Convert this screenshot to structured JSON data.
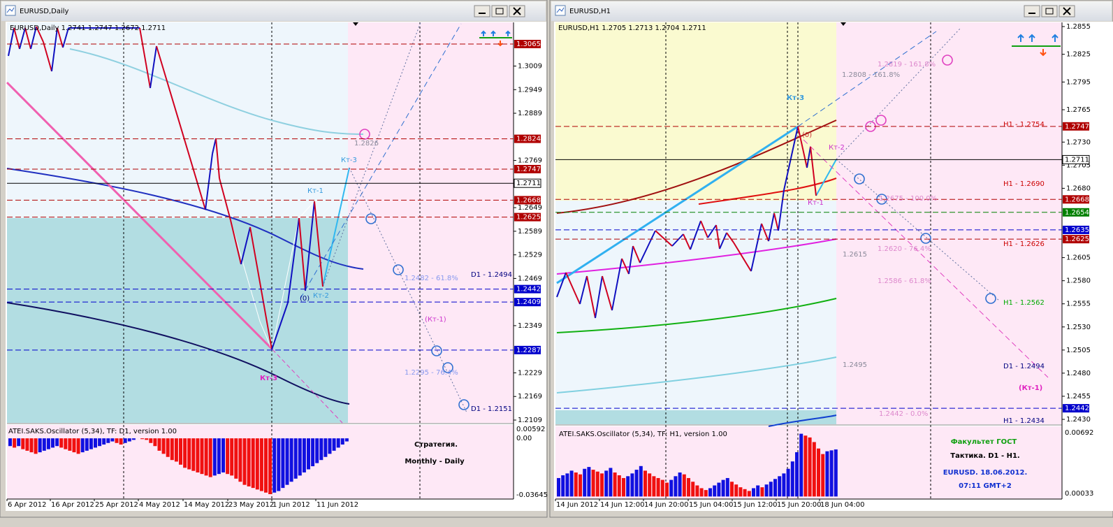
{
  "windows": [
    {
      "title": "EURUSD,Daily",
      "header": "EURUSD,Daily 1.2741 1.2747 1.2672 1.2711",
      "price_ticks": [
        "1.3009",
        "1.2949",
        "1.2889",
        "1.2769",
        "1.2649",
        "1.2589",
        "1.2529",
        "1.2469",
        "1.2349",
        "1.2229",
        "1.2169",
        "1.2109"
      ],
      "levels": [
        {
          "label": "1.3065",
          "color": "#b00000"
        },
        {
          "label": "1.2824",
          "color": "#b00000"
        },
        {
          "label": "1.2747",
          "color": "#b00000"
        },
        {
          "label": "1.2711",
          "color": "#000000"
        },
        {
          "label": "1.2668",
          "color": "#b00000"
        },
        {
          "label": "1.2625",
          "color": "#b00000"
        },
        {
          "label": "1.2442",
          "color": "#0000cc"
        },
        {
          "label": "1.2409",
          "color": "#0000cc"
        },
        {
          "label": "1.2287",
          "color": "#0000cc"
        }
      ],
      "annotations": [
        {
          "text": "1.2826",
          "color": "#8a8a9a"
        },
        {
          "text": "Кт-3",
          "color": "#3399dd"
        },
        {
          "text": "Кт-1",
          "color": "#3399dd"
        },
        {
          "text": "D1 - 1.2494",
          "color": "#000080"
        },
        {
          "text": "1.2482 - 61.8%",
          "color": "#8899ee"
        },
        {
          "text": "(0)",
          "color": "#000080"
        },
        {
          "text": "Кт-2",
          "color": "#3399dd"
        },
        {
          "text": "(Кт-1)",
          "color": "#cc33cc"
        },
        {
          "text": "1.2295 - 76.4%",
          "color": "#8899ee"
        },
        {
          "text": "Кт-3",
          "color": "#e020c0"
        },
        {
          "text": "D1 - 1.2151",
          "color": "#000080"
        }
      ],
      "dates": [
        "6 Apr 2012",
        "16 Apr 2012",
        "25 Apr 2012",
        "4 May 2012",
        "14 May 2012",
        "23 May 2012",
        "1 Jun 2012",
        "11 Jun 2012"
      ],
      "oscillator": {
        "label": "ATEI.SAKS.Oscillator (5,34), TF: D1, version 1.00",
        "ticks": [
          "0.00592",
          "0.00",
          "-0.03645"
        ],
        "values": [
          -0.005,
          -0.006,
          -0.005,
          -0.007,
          -0.008,
          -0.009,
          -0.01,
          -0.009,
          -0.008,
          -0.007,
          -0.006,
          -0.005,
          -0.006,
          -0.007,
          -0.008,
          -0.009,
          -0.01,
          -0.009,
          -0.008,
          -0.007,
          -0.006,
          -0.005,
          -0.004,
          -0.003,
          -0.002,
          -0.003,
          -0.004,
          -0.003,
          -0.002,
          -0.001,
          0,
          -0.0005,
          -0.001,
          -0.003,
          -0.005,
          -0.008,
          -0.01,
          -0.012,
          -0.014,
          -0.015,
          -0.017,
          -0.019,
          -0.02,
          -0.021,
          -0.022,
          -0.023,
          -0.024,
          -0.025,
          -0.024,
          -0.023,
          -0.022,
          -0.023,
          -0.024,
          -0.026,
          -0.028,
          -0.03,
          -0.031,
          -0.032,
          -0.033,
          -0.034,
          -0.035,
          -0.036,
          -0.035,
          -0.034,
          -0.032,
          -0.03,
          -0.028,
          -0.026,
          -0.024,
          -0.022,
          -0.02,
          -0.018,
          -0.016,
          -0.014,
          -0.012,
          -0.01,
          -0.008,
          -0.006,
          -0.004,
          -0.002
        ]
      },
      "notes": [
        "Стратегия.",
        "Monthly - Daily"
      ]
    },
    {
      "title": "EURUSD,H1",
      "header": "EURUSD,H1 1.2705 1.2713 1.2704 1.2711",
      "price_ticks": [
        "1.2855",
        "1.2825",
        "1.2795",
        "1.2765",
        "1.2730",
        "1.2705",
        "1.2680",
        "1.2605",
        "1.2580",
        "1.2555",
        "1.2530",
        "1.2505",
        "1.2480",
        "1.2455",
        "1.2430"
      ],
      "levels": [
        {
          "label": "1.2747",
          "color": "#b00000"
        },
        {
          "label": "1.2711",
          "color": "#000000"
        },
        {
          "label": "1.2668",
          "color": "#b00000"
        },
        {
          "label": "1.2654",
          "color": "#008000"
        },
        {
          "label": "1.2635",
          "color": "#0000cc"
        },
        {
          "label": "1.2625",
          "color": "#b00000"
        },
        {
          "label": "1.2442",
          "color": "#0000cc"
        }
      ],
      "annotations": [
        {
          "text": "1.2819 - 161.8%",
          "color": "#dd88cc"
        },
        {
          "text": "1.2808 - 161.8%",
          "color": "#8a8a9a"
        },
        {
          "text": "Кт-3",
          "color": "#3399dd"
        },
        {
          "text": "(0)",
          "color": "#cc3333"
        },
        {
          "text": "Кт-2",
          "color": "#cc33cc"
        },
        {
          "text": "H1 - 1.2754",
          "color": "#cc0000"
        },
        {
          "text": "Кт-1",
          "color": "#cc33cc"
        },
        {
          "text": "H1 - 1.2690",
          "color": "#cc0000"
        },
        {
          "text": "1.2675 - 100.0%",
          "color": "#dd88cc"
        },
        {
          "text": "H1 - 1.2626",
          "color": "#cc0000"
        },
        {
          "text": "1.2620 - 76.4%",
          "color": "#dd88cc"
        },
        {
          "text": "1.2615",
          "color": "#8a8a9a"
        },
        {
          "text": "1.2586 - 61.8%",
          "color": "#dd88cc"
        },
        {
          "text": "H1 - 1.2562",
          "color": "#00aa00"
        },
        {
          "text": "1.2495",
          "color": "#8a8a9a"
        },
        {
          "text": "D1 - 1.2494",
          "color": "#000080"
        },
        {
          "text": "(Кт-1)",
          "color": "#e020c0"
        },
        {
          "text": "1.2442 - 0.0%",
          "color": "#dd88cc"
        },
        {
          "text": "H1 - 1.2434",
          "color": "#000080"
        }
      ],
      "dates": [
        "14 Jun 2012",
        "14 Jun 12:00",
        "14 Jun 20:00",
        "15 Jun 04:00",
        "15 Jun 12:00",
        "15 Jun 20:00",
        "18 Jun 04:00"
      ],
      "oscillator": {
        "label": "ATEI.SAKS.Oscillator (5,34), TF: H1, version 1.00",
        "ticks": [
          "0.00692",
          "0.00033"
        ],
        "values": [
          0.002,
          0.0023,
          0.0025,
          0.0028,
          0.0026,
          0.0024,
          0.003,
          0.0032,
          0.0029,
          0.0027,
          0.0025,
          0.0028,
          0.0031,
          0.0026,
          0.0023,
          0.002,
          0.0022,
          0.0025,
          0.0029,
          0.0033,
          0.0028,
          0.0025,
          0.0022,
          0.002,
          0.0018,
          0.0015,
          0.0018,
          0.0022,
          0.0026,
          0.0024,
          0.002,
          0.0016,
          0.0012,
          0.0009,
          0.0007,
          0.0009,
          0.0012,
          0.0015,
          0.0018,
          0.002,
          0.0016,
          0.0013,
          0.001,
          0.0008,
          0.0006,
          0.0009,
          0.0012,
          0.001,
          0.0013,
          0.0016,
          0.0019,
          0.0022,
          0.0025,
          0.003,
          0.0038,
          0.0048,
          0.0068,
          0.0066,
          0.0064,
          0.0059,
          0.0052,
          0.0046,
          0.0049,
          0.005,
          0.0051
        ]
      },
      "notes": [
        "Факультет ГОСТ",
        "Тактика. D1 - H1.",
        "EURUSD. 18.06.2012.",
        "07:11  GMT+2"
      ]
    }
  ]
}
